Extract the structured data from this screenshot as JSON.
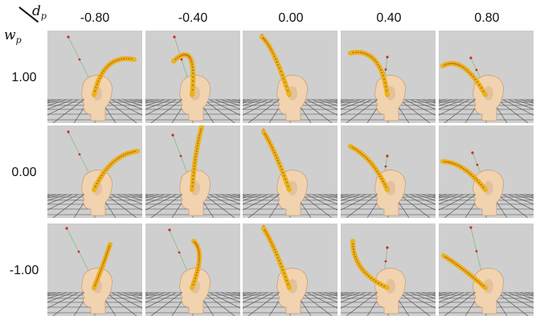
{
  "axes": {
    "column_symbol": "d",
    "column_subscript": "p",
    "row_symbol": "w",
    "row_subscript": "p"
  },
  "columns": [
    "-0.80",
    "-0.40",
    "0.00",
    "0.40",
    "0.80"
  ],
  "rows": [
    "1.00",
    "0.00",
    "-1.00"
  ],
  "colors": {
    "background": "#cfcfcf",
    "grid": "#444444",
    "head": "#f2d3b0",
    "head_shadow": "#c9a07c",
    "tentacle": "#e8b41a",
    "tentacle_dots": "#c8502a",
    "target_line": "#7fbf7f",
    "target_point": "#e02020"
  },
  "panels": [
    [
      {
        "tip": [
          108,
          36
        ],
        "ctrl": [
          70,
          28
        ],
        "target": [
          26,
          8
        ]
      },
      {
        "tip": [
          35,
          38
        ],
        "ctrl": [
          65,
          10
        ],
        "target": [
          36,
          8
        ]
      },
      {
        "tip": [
          24,
          8
        ],
        "ctrl": [
          38,
          20
        ],
        "target": [
          24,
          6
        ]
      },
      {
        "tip": [
          12,
          28
        ],
        "ctrl": [
          50,
          20
        ],
        "target": [
          58,
          33
        ]
      },
      {
        "tip": [
          5,
          44
        ],
        "ctrl": [
          30,
          30
        ],
        "target": [
          40,
          34
        ]
      }
    ],
    [
      {
        "tip": [
          112,
          32
        ],
        "ctrl": [
          78,
          36
        ],
        "target": [
          26,
          8
        ]
      },
      {
        "tip": [
          70,
          2
        ],
        "ctrl": [
          62,
          30
        ],
        "target": [
          34,
          12
        ]
      },
      {
        "tip": [
          26,
          8
        ],
        "ctrl": [
          40,
          30
        ],
        "target": [
          26,
          6
        ]
      },
      {
        "tip": [
          12,
          26
        ],
        "ctrl": [
          40,
          40
        ],
        "target": [
          58,
          38
        ]
      },
      {
        "tip": [
          5,
          45
        ],
        "ctrl": [
          30,
          45
        ],
        "target": [
          42,
          34
        ]
      }
    ],
    [
      {
        "tip": [
          78,
          26
        ],
        "ctrl": [
          70,
          50
        ],
        "target": [
          24,
          6
        ]
      },
      {
        "tip": [
          60,
          22
        ],
        "ctrl": [
          75,
          35
        ],
        "target": [
          30,
          8
        ]
      },
      {
        "tip": [
          26,
          6
        ],
        "ctrl": [
          40,
          28
        ],
        "target": [
          26,
          4
        ]
      },
      {
        "tip": [
          15,
          22
        ],
        "ctrl": [
          15,
          60
        ],
        "target": [
          58,
          30
        ]
      },
      {
        "tip": [
          6,
          40
        ],
        "ctrl": [
          30,
          55
        ],
        "target": [
          40,
          5
        ]
      }
    ]
  ]
}
